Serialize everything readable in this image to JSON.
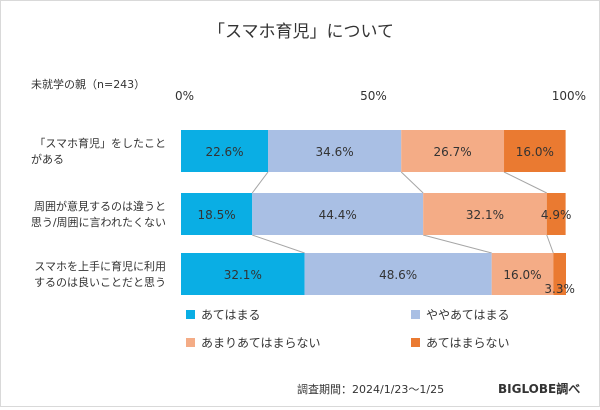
{
  "chart_data": {
    "type": "bar",
    "stacked": true,
    "orientation": "horizontal",
    "title": "「スマホ育児」について",
    "sample_label": "未就学の親（n=243）",
    "axis_ticks": [
      "0%",
      "50%",
      "100%"
    ],
    "xlim": [
      0,
      100
    ],
    "categories": [
      [
        "「スマホ育児」をしたこと",
        "がある"
      ],
      [
        "周囲が意見するのは違うと",
        "思う/周囲に言われたくない"
      ],
      [
        "スマホを上手に育児に利用",
        "するのは良いことだと思う"
      ]
    ],
    "series": [
      {
        "name": "あてはまる",
        "color": "#0aaee4",
        "values": [
          22.6,
          18.5,
          32.1
        ]
      },
      {
        "name": "ややあてはまる",
        "color": "#a9bfe4",
        "values": [
          34.6,
          44.4,
          48.6
        ]
      },
      {
        "name": "あまりあてはまらない",
        "color": "#f4ac86",
        "values": [
          26.7,
          32.1,
          16.0
        ]
      },
      {
        "name": "あてはまらない",
        "color": "#ea7a31",
        "values": [
          16.0,
          4.9,
          3.3
        ]
      }
    ],
    "value_labels": [
      [
        "22.6%",
        "34.6%",
        "26.7%",
        "16.0%"
      ],
      [
        "18.5%",
        "44.4%",
        "32.1%",
        "4.9%"
      ],
      [
        "32.1%",
        "48.6%",
        "16.0%",
        "3.3%"
      ]
    ],
    "legend_position": "bottom",
    "grid": false
  },
  "footer": {
    "period": "調査期間：2024/1/23～1/25",
    "source": "BIGLOBE調べ"
  }
}
